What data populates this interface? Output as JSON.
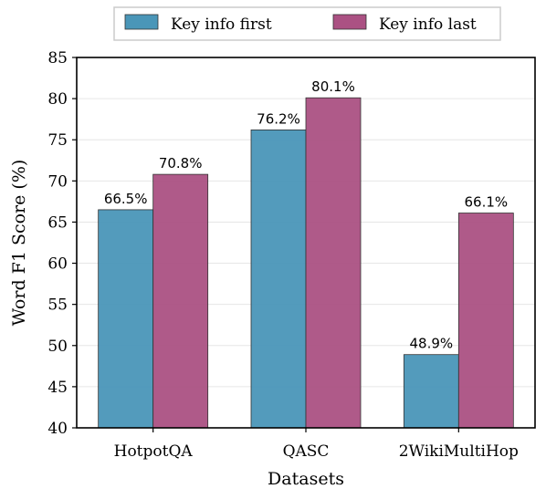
{
  "chart_data": {
    "type": "bar",
    "title": "",
    "xlabel": "Datasets",
    "ylabel": "Word F1 Score (%)",
    "ylim": [
      40,
      85
    ],
    "yticks": [
      40,
      45,
      50,
      55,
      60,
      65,
      70,
      75,
      80,
      85
    ],
    "grid": "horizontal",
    "legend_position": "top-center",
    "categories": [
      "HotpotQA",
      "QASC",
      "2WikiMultiHop"
    ],
    "series": [
      {
        "name": "Key info first",
        "color": "#4a96b8",
        "values": [
          66.5,
          76.2,
          48.9
        ],
        "labels": [
          "66.5%",
          "76.2%",
          "48.9%"
        ]
      },
      {
        "name": "Key info last",
        "color": "#ab5183",
        "values": [
          70.8,
          80.1,
          66.1
        ],
        "labels": [
          "70.8%",
          "80.1%",
          "66.1%"
        ]
      }
    ]
  }
}
